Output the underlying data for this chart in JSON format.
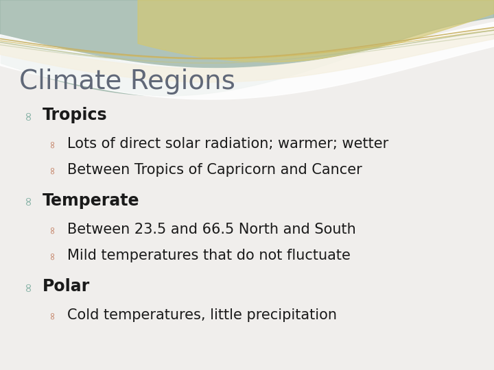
{
  "title": "Climate Regions",
  "title_color": "#606878",
  "title_fontsize": 28,
  "background_color": "#f0eeec",
  "bullet_color_level1": "#7aab9e",
  "bullet_color_level2": "#c0785a",
  "text_color_bold": "#1a1a1a",
  "text_color_normal": "#1a1a1a",
  "items": [
    {
      "level": 1,
      "text": "Tropics",
      "bold": true
    },
    {
      "level": 2,
      "text": "Lots of direct solar radiation; warmer; wetter",
      "bold": false
    },
    {
      "level": 2,
      "text": "Between Tropics of Capricorn and Cancer",
      "bold": false
    },
    {
      "level": 1,
      "text": "Temperate",
      "bold": true
    },
    {
      "level": 2,
      "text": "Between 23.5 and 66.5 North and South",
      "bold": false
    },
    {
      "level": 2,
      "text": "Mild temperatures that do not fluctuate",
      "bold": false
    },
    {
      "level": 1,
      "text": "Polar",
      "bold": true
    },
    {
      "level": 2,
      "text": "Cold temperatures, little precipitation",
      "bold": false
    }
  ]
}
